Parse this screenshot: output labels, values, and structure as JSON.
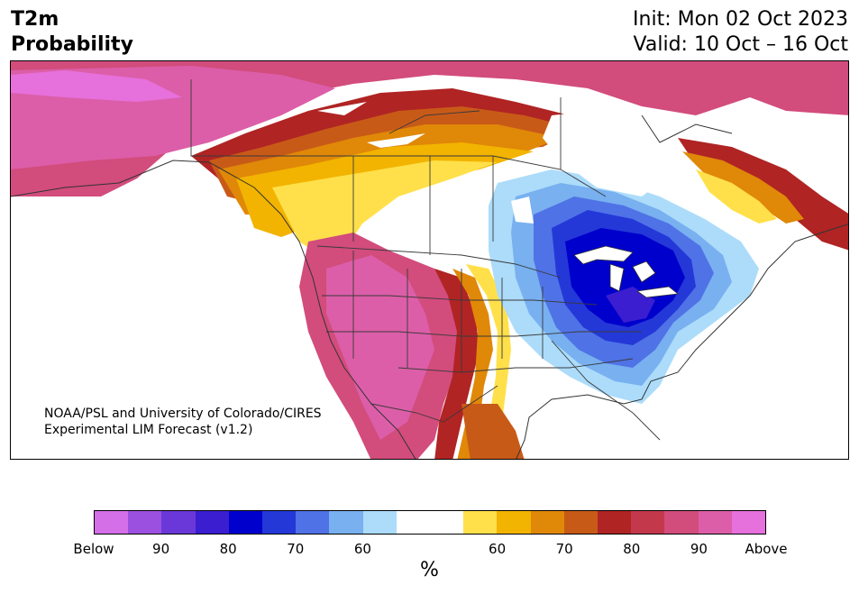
{
  "title": {
    "variable": "T2m",
    "quantity": "Probability",
    "init": "Init: Mon 02 Oct 2023",
    "valid": "Valid: 10 Oct – 16 Oct"
  },
  "credit": {
    "line1": "NOAA/PSL and University of Colorado/CIRES",
    "line2": "Experimental LIM Forecast (v1.2)"
  },
  "colorbar": {
    "colors": [
      "#d46fe8",
      "#9c50e0",
      "#6a38d8",
      "#3a1ed0",
      "#0000cc",
      "#2438d8",
      "#4f72e6",
      "#78b0f0",
      "#acdcfa",
      "#ffffff",
      "#ffffff",
      "#ffe04a",
      "#f2b400",
      "#e08808",
      "#c85a18",
      "#b02424",
      "#c4384c",
      "#d24c7c",
      "#dc5ea8",
      "#e670dc"
    ],
    "tick_labels": [
      "Below",
      "90",
      "80",
      "70",
      "60",
      "60",
      "70",
      "80",
      "90",
      "Above"
    ],
    "unit": "%"
  },
  "map": {
    "region": "North America",
    "style": "filled probability contours with state and country borders"
  }
}
